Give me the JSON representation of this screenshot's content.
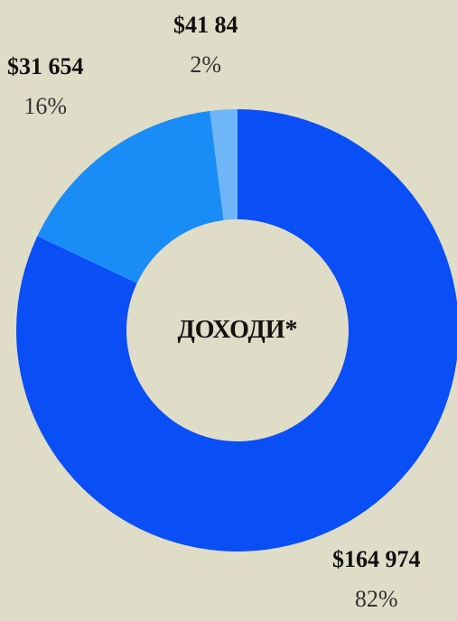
{
  "chart_data": {
    "type": "pie",
    "title": "ДОХОДИ*",
    "categories": [
      "",
      "",
      ""
    ],
    "slices": [
      {
        "value_label": "$164 974",
        "percent_label": "82%",
        "value": 164974,
        "percent": 82,
        "color": "#0a4ff5"
      },
      {
        "value_label": "$31 654",
        "percent_label": "16%",
        "value": 31654,
        "percent": 16,
        "color": "#1a8cf5"
      },
      {
        "value_label": "$41 84",
        "percent_label": "2%",
        "value": 4184,
        "percent": 2,
        "color": "#6fb6f9"
      }
    ],
    "donut": true,
    "legend": "none"
  }
}
